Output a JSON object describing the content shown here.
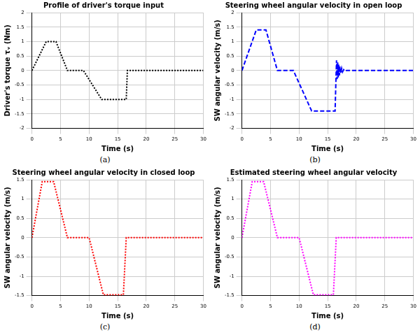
{
  "chart_data": [
    {
      "type": "line",
      "title": "Profile of driver's torque input",
      "caption": "(a)",
      "x_label": "Time (s)",
      "y_label": "Driver's torque τᵥ (Nm)",
      "x": [
        0,
        2.5,
        4.2,
        6.2,
        9,
        12.2,
        16.5,
        16.7,
        30
      ],
      "series": [
        {
          "name": "Driver's torque",
          "color": "#000000",
          "line_style": "dotted",
          "marker": "none",
          "values": [
            0,
            1,
            1,
            0,
            0,
            -1,
            -1,
            0,
            0
          ]
        }
      ],
      "xlim": [
        0,
        30
      ],
      "xticks": [
        0,
        5,
        10,
        15,
        20,
        25,
        30
      ],
      "ylim": [
        -2,
        2
      ],
      "yticks": [
        -2,
        -1.5,
        -1,
        -0.5,
        0,
        0.5,
        1,
        1.5,
        2
      ],
      "grid": true
    },
    {
      "type": "line",
      "title": "Steering wheel angular velocity in open loop",
      "caption": "(b)",
      "x_label": "Time (s)",
      "y_label": "SW angular velocity (m/s)",
      "x": [
        0,
        2.5,
        4.2,
        6.2,
        9,
        12.2,
        16.3,
        16.45,
        16.55,
        16.65,
        16.75,
        16.85,
        16.95,
        17.05,
        17.15,
        17.3,
        17.45,
        17.6,
        17.8,
        18.0,
        18.3,
        30
      ],
      "series": [
        {
          "name": "Open loop",
          "color": "#0000ff",
          "line_style": "dashed",
          "marker": "none",
          "values": [
            0,
            1.4,
            1.4,
            0,
            0,
            -1.4,
            -1.4,
            -0.3,
            0.35,
            -0.3,
            0.28,
            -0.24,
            0.2,
            -0.17,
            0.14,
            -0.1,
            0.07,
            -0.05,
            0.03,
            -0.02,
            0,
            0
          ]
        }
      ],
      "xlim": [
        0,
        30
      ],
      "xticks": [
        0,
        5,
        10,
        15,
        20,
        25,
        30
      ],
      "ylim": [
        -2,
        2
      ],
      "yticks": [
        -2,
        -1.5,
        -1,
        -0.5,
        0,
        0.5,
        1,
        1.5,
        2
      ],
      "grid": true
    },
    {
      "type": "line",
      "title": "Steering wheel angular velocity in closed loop",
      "caption": "(c)",
      "x_label": "Time (s)",
      "y_label": "SW angular velocity (m/s)",
      "x": [
        0,
        1.8,
        3.8,
        6.2,
        10,
        12.5,
        16,
        16.5,
        30
      ],
      "series": [
        {
          "name": "Closed loop",
          "color": "#ff0000",
          "line_style": "dotted",
          "marker": "none",
          "values": [
            0,
            1.45,
            1.45,
            0,
            0,
            -1.48,
            -1.48,
            0,
            0
          ]
        }
      ],
      "xlim": [
        0,
        30
      ],
      "xticks": [
        0,
        5,
        10,
        15,
        20,
        25,
        30
      ],
      "ylim": [
        -1.5,
        1.5
      ],
      "yticks": [
        -1.5,
        -1,
        -0.5,
        0,
        0.5,
        1,
        1.5
      ],
      "grid": true
    },
    {
      "type": "line",
      "title": "Estimated steering wheel angular velocity",
      "caption": "(d)",
      "x_label": "Time (s)",
      "y_label": "SW angular velocity (m/s)",
      "x": [
        0,
        1.8,
        3.8,
        6.2,
        10,
        12.5,
        16,
        16.5,
        30
      ],
      "series": [
        {
          "name": "Estimated",
          "color": "#ff00ff",
          "line_style": "dotted",
          "marker": "none",
          "values": [
            0,
            1.45,
            1.45,
            0,
            0,
            -1.48,
            -1.48,
            0,
            0
          ]
        }
      ],
      "xlim": [
        0,
        30
      ],
      "xticks": [
        0,
        5,
        10,
        15,
        20,
        25,
        30
      ],
      "ylim": [
        -1.5,
        1.5
      ],
      "yticks": [
        -1.5,
        -1,
        -0.5,
        0,
        0.5,
        1,
        1.5
      ],
      "grid": true
    }
  ]
}
